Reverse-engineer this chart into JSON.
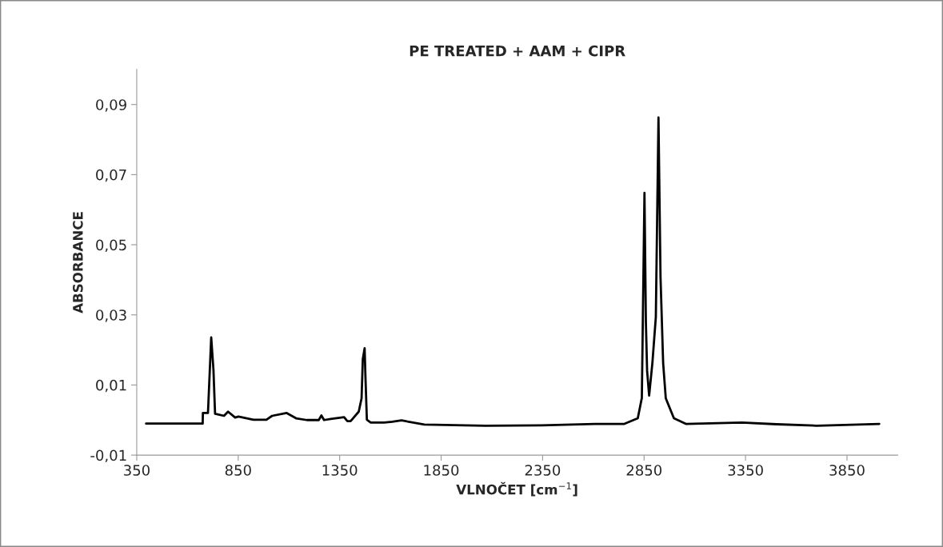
{
  "chart_data": {
    "type": "line",
    "title": "PE TREATED + AAM + CIPR",
    "xlabel": "VLNOČET [cm$^{−1}$]",
    "ylabel": "ABSORBANCE",
    "series": [
      {
        "color": "#000000",
        "x": [
          396,
          675,
          676,
          701,
          717,
          728,
          736,
          780,
          800,
          835,
          851,
          925,
          989,
          1017,
          1089,
          1135,
          1188,
          1247,
          1260,
          1273,
          1306,
          1372,
          1388,
          1404,
          1444,
          1458,
          1464,
          1473,
          1477,
          1484,
          1503,
          1569,
          1609,
          1655,
          1767,
          2069,
          2345,
          2608,
          2753,
          2819,
          2839,
          2852,
          2859,
          2865,
          2875,
          2891,
          2908,
          2921,
          2931,
          2944,
          2957,
          2997,
          3056,
          3332,
          3503,
          3700,
          4009
        ],
        "values": [
          -0.001,
          -0.001,
          0.002,
          0.002,
          0.0236,
          0.0144,
          0.0018,
          0.0012,
          0.0024,
          0.0007,
          0.001,
          0.0001,
          0.0001,
          0.0012,
          0.002,
          0.0005,
          0.0,
          0.0,
          0.0013,
          0.0,
          0.0003,
          0.0008,
          -0.0003,
          -0.0003,
          0.0024,
          0.0062,
          0.0174,
          0.0205,
          0.0124,
          0.0001,
          -0.0007,
          -0.0007,
          -0.0005,
          -0.0001,
          -0.0013,
          -0.0016,
          -0.0015,
          -0.0011,
          -0.0011,
          0.0005,
          0.0063,
          0.0648,
          0.0278,
          0.014,
          0.007,
          0.0163,
          0.0294,
          0.0863,
          0.0409,
          0.0163,
          0.0062,
          0.0005,
          -0.0011,
          -0.0007,
          -0.0012,
          -0.0016,
          -0.0011
        ]
      }
    ],
    "xlim": [
      350,
      4100
    ],
    "xticks": [
      350,
      850,
      1350,
      1850,
      2350,
      2850,
      3350,
      3850
    ],
    "ylim": [
      -0.01,
      0.1
    ],
    "yticks": [
      {
        "value": -0.01,
        "label": "-0,01"
      },
      {
        "value": 0.01,
        "label": "0,01"
      },
      {
        "value": 0.03,
        "label": "0,03"
      },
      {
        "value": 0.05,
        "label": "0,05"
      },
      {
        "value": 0.07,
        "label": "0,07"
      },
      {
        "value": 0.09,
        "label": "0,09"
      }
    ],
    "grid": false,
    "legend": false,
    "marker": "none",
    "line_style": "solid"
  }
}
